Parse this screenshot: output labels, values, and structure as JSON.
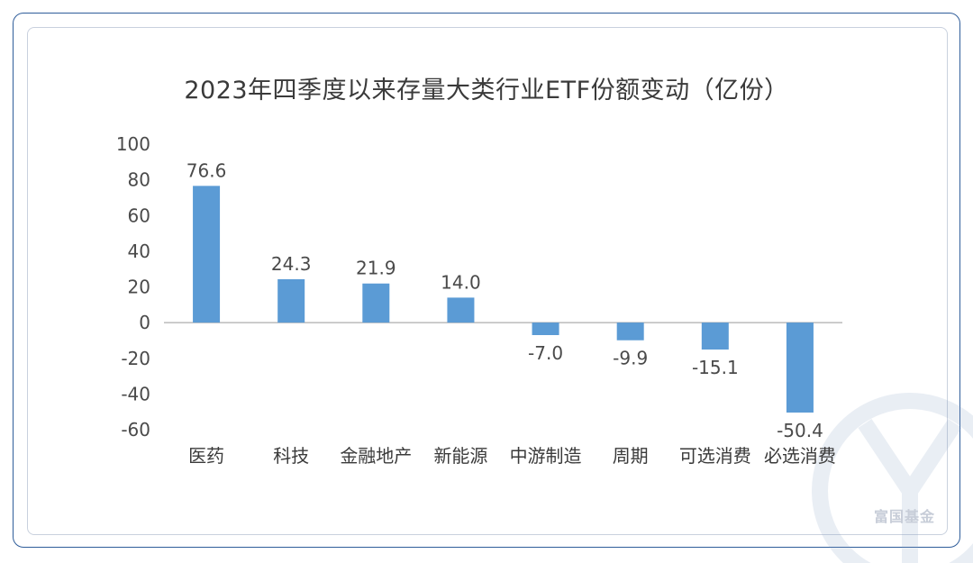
{
  "chart_data": {
    "type": "bar",
    "title": "2023年四季度以来存量大类行业ETF份额变动（亿份）",
    "categories": [
      "医药",
      "科技",
      "金融地产",
      "新能源",
      "中游制造",
      "周期",
      "可选消费",
      "必选消费"
    ],
    "values": [
      76.6,
      24.3,
      21.9,
      14.0,
      -7.0,
      -9.9,
      -15.1,
      -50.4
    ],
    "value_labels": [
      "76.6",
      "24.3",
      "21.9",
      "14.0",
      "-7.0",
      "-9.9",
      "-15.1",
      "-50.4"
    ],
    "ylim": [
      -60,
      100
    ],
    "yticks": [
      "100",
      "80",
      "60",
      "40",
      "20",
      "0",
      "-20",
      "-40",
      "-60"
    ],
    "bar_color": "#5b9bd5",
    "grid": false,
    "legend": "none"
  },
  "watermark": {
    "text": "富国基金"
  }
}
